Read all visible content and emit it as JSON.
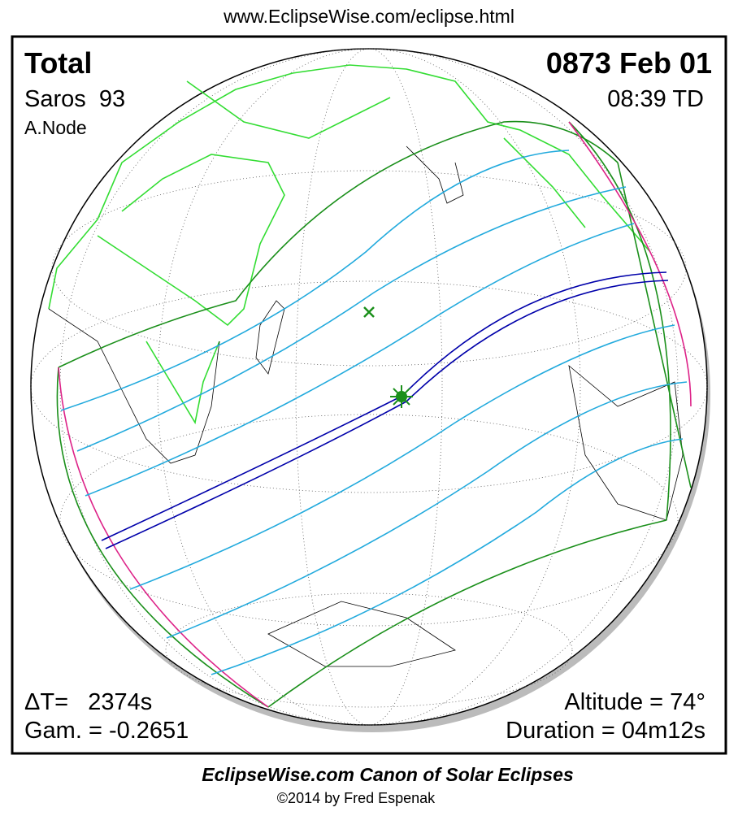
{
  "header": {
    "url": "www.EclipseWise.com/eclipse.html"
  },
  "map": {
    "eclipse_type": "Total",
    "date": "0873 Feb 01",
    "saros": "Saros  93",
    "time": "08:39 TD",
    "node": "A.Node",
    "delta_t": "ΔT=   2374s",
    "gamma": "Gam. = -0.2651",
    "altitude": "Altitude = 74°",
    "duration": "Duration = 04m12s"
  },
  "footer": {
    "title": "EclipseWise.com Canon of Solar Eclipses",
    "copyright": "©2014 by Fred Espenak"
  }
}
